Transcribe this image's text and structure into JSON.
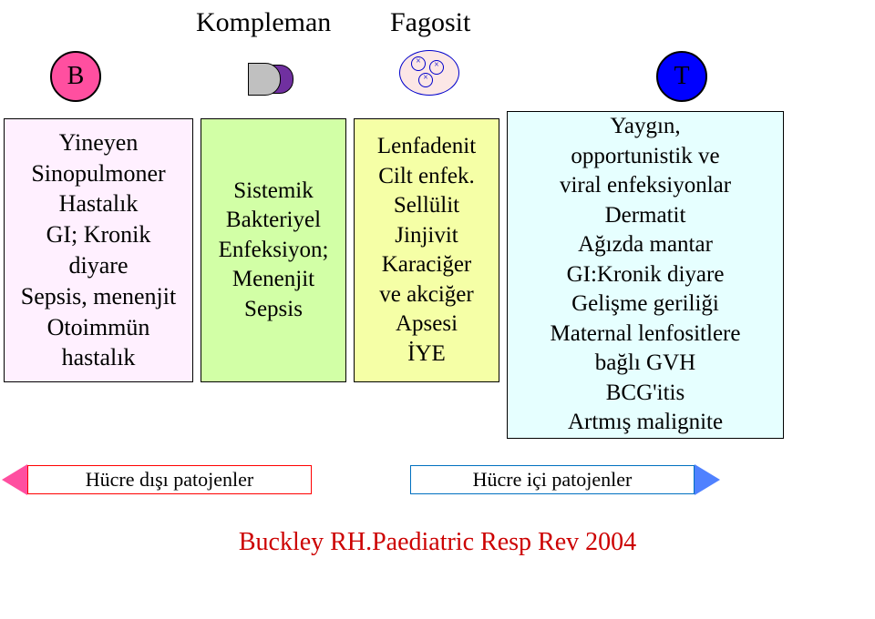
{
  "header": {
    "b_label": "B",
    "t_label": "T",
    "kompleman": "Kompleman",
    "fagosit": "Fagosit"
  },
  "columns": {
    "b": {
      "bg": "#fdeffd",
      "lines": [
        "Yineyen",
        "Sinopulmoner",
        "Hastalık",
        "GI; Kronik",
        "diyare",
        "Sepsis, menenjit",
        "Otoimmün",
        "hastalık"
      ]
    },
    "k": {
      "bg": "#d2ffa6",
      "lines": [
        "Sistemik",
        "Bakteriyel",
        "Enfeksiyon;",
        "Menenjit",
        "Sepsis"
      ]
    },
    "f": {
      "bg": "#f5ffa6",
      "lines": [
        "Lenfadenit",
        "Cilt enfek.",
        "Sellülit",
        "Jinjivit",
        "Karaciğer",
        "ve akciğer",
        "Apsesi",
        "İYE"
      ]
    },
    "t": {
      "bg": "#e6ffff",
      "lines": [
        "Yaygın,",
        "opportunistik ve",
        "viral enfeksiyonlar",
        "Dermatit",
        "Ağızda mantar",
        "GI:Kronik diyare",
        "Gelişme geriliği",
        "Maternal lenfositlere",
        "bağlı GVH",
        "BCG'itis",
        "Artmış malignite"
      ]
    }
  },
  "arrows": {
    "left_label": "Hücre dışı patojenler",
    "right_label": "Hücre içi patojenler",
    "left_color": "#ff4fa0",
    "left_border": "#ff0000",
    "right_color": "#4f81ff",
    "right_border": "#0070c0"
  },
  "citation": "Buckley RH.Paediatric Resp Rev 2004",
  "colors": {
    "b_circle_fill": "#ff4fa0",
    "t_circle_fill": "#0000ff",
    "citation_color": "#cc0000"
  }
}
